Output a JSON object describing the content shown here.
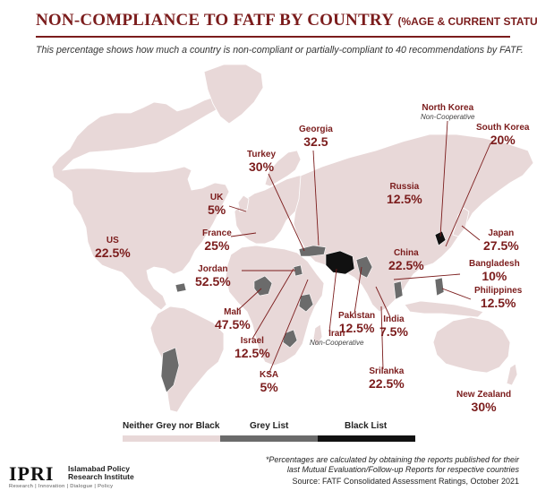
{
  "header": {
    "title": "NON-COMPLIANCE TO FATF BY COUNTRY",
    "title_suffix": "(%AGE & CURRENT STATUS)",
    "subtitle": "This percentage shows how much a country is non-compliant or partially-compliant to 40 recommendations by FATF."
  },
  "colors": {
    "neutral": "#e8d8d8",
    "grey_list": "#6b6b6b",
    "black_list": "#111111",
    "accent": "#7b1c1c",
    "leader": "#7b1c1c"
  },
  "countries": [
    {
      "name": "North Korea",
      "value": "",
      "status": "Non-Cooperative",
      "list": "black"
    },
    {
      "name": "South Korea",
      "value": "20%",
      "status": "",
      "list": "neither"
    },
    {
      "name": "Georgia",
      "value": "32.5",
      "status": "",
      "list": "neither"
    },
    {
      "name": "Turkey",
      "value": "30%",
      "status": "",
      "list": "grey"
    },
    {
      "name": "Russia",
      "value": "12.5%",
      "status": "",
      "list": "neither"
    },
    {
      "name": "UK",
      "value": "5%",
      "status": "",
      "list": "neither"
    },
    {
      "name": "France",
      "value": "25%",
      "status": "",
      "list": "neither"
    },
    {
      "name": "US",
      "value": "22.5%",
      "status": "",
      "list": "neither"
    },
    {
      "name": "Japan",
      "value": "27.5%",
      "status": "",
      "list": "neither"
    },
    {
      "name": "China",
      "value": "22.5%",
      "status": "",
      "list": "neither"
    },
    {
      "name": "Bangladesh",
      "value": "10%",
      "status": "",
      "list": "neither"
    },
    {
      "name": "Jordan",
      "value": "52.5%",
      "status": "",
      "list": "grey"
    },
    {
      "name": "Philippines",
      "value": "12.5%",
      "status": "",
      "list": "grey"
    },
    {
      "name": "Mali",
      "value": "47.5%",
      "status": "",
      "list": "grey"
    },
    {
      "name": "Pakistan",
      "value": "12.5%",
      "status": "",
      "list": "grey"
    },
    {
      "name": "India",
      "value": "7.5%",
      "status": "",
      "list": "neither"
    },
    {
      "name": "Israel",
      "value": "12.5%",
      "status": "",
      "list": "neither"
    },
    {
      "name": "Iran",
      "value": "",
      "status": "Non-Cooperative",
      "list": "black"
    },
    {
      "name": "KSA",
      "value": "5%",
      "status": "",
      "list": "neither"
    },
    {
      "name": "Srilanka",
      "value": "22.5%",
      "status": "",
      "list": "neither"
    },
    {
      "name": "New Zealand",
      "value": "30%",
      "status": "",
      "list": "neither"
    }
  ],
  "legend": [
    {
      "label": "Neither Grey nor Black",
      "color": "#e8d8d8"
    },
    {
      "label": "Grey List",
      "color": "#6b6b6b"
    },
    {
      "label": "Black List",
      "color": "#111111"
    }
  ],
  "footer": {
    "note_line1": "*Percentages are calculated by obtaining the reports published for their",
    "note_line2": "last Mutual Evaluation/Follow-up Reports for respective countries",
    "source": "Source: FATF Consolidated Assessment Ratings, October 2021"
  },
  "logo": {
    "mark": "IPRI",
    "name_line1": "Islamabad Policy",
    "name_line2": "Research Institute",
    "tagline": "Research | Innovation | Dialogue | Policy"
  }
}
